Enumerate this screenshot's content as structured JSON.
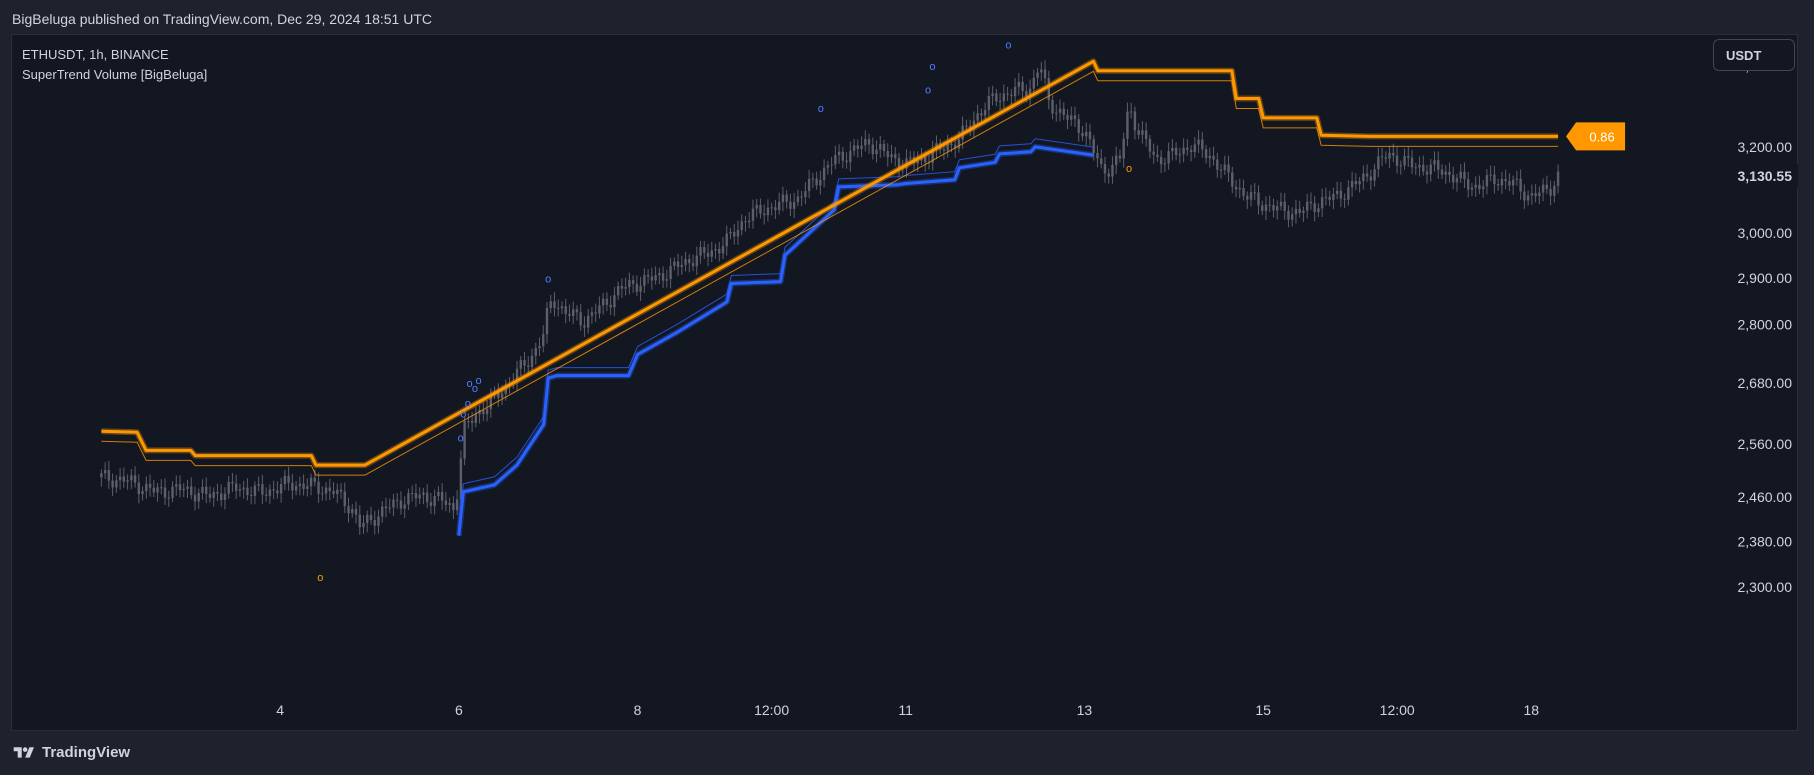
{
  "header": {
    "published_text": "BigBeluga published on TradingView.com, Dec 29, 2024 18:51 UTC"
  },
  "legend": {
    "symbol_line": "ETHUSDT, 1h, BINANCE",
    "indicator_line": "SuperTrend Volume [BigBeluga]"
  },
  "currency_button": "USDT",
  "footer": {
    "brand": "TradingView"
  },
  "colors": {
    "background": "#131722",
    "candles": "#5d606b",
    "bull_trend": "#2962ff",
    "bear_trend": "#ff9800",
    "text": "#d1d4dc"
  },
  "chart_data": {
    "type": "line",
    "symbol": "ETHUSDT",
    "interval": "1h",
    "exchange": "BINANCE",
    "indicator": "SuperTrend Volume [BigBeluga]",
    "x_ticks": [
      "4",
      "6",
      "8",
      "12:00",
      "11",
      "13",
      "15",
      "12:00",
      "18"
    ],
    "y_ticks": [
      "2,300.00",
      "2,380.00",
      "2,460.00",
      "2,560.00",
      "2,680.00",
      "2,800.00",
      "2,900.00",
      "3,000.00",
      "3,200.00",
      "3,400.00"
    ],
    "y_tick_values": [
      2300,
      2380,
      2460,
      2560,
      2680,
      2800,
      2900,
      3000,
      3200,
      3400
    ],
    "y_scale": "log",
    "ylim": [
      2210,
      3480
    ],
    "current_price": 3130.55,
    "current_price_label": "3,130.55",
    "indicator_value_label": "0.86",
    "price_path": [
      [
        2.0,
        2497
      ],
      [
        2.3,
        2490
      ],
      [
        2.6,
        2470
      ],
      [
        2.9,
        2475
      ],
      [
        3.2,
        2462
      ],
      [
        3.5,
        2478
      ],
      [
        3.8,
        2468
      ],
      [
        4.1,
        2485
      ],
      [
        4.4,
        2480
      ],
      [
        4.6,
        2470
      ],
      [
        4.8,
        2440
      ],
      [
        4.9,
        2405
      ],
      [
        5.0,
        2418
      ],
      [
        5.2,
        2440
      ],
      [
        5.4,
        2458
      ],
      [
        5.6,
        2462
      ],
      [
        5.8,
        2455
      ],
      [
        5.95,
        2438
      ],
      [
        6.0,
        2492
      ],
      [
        6.05,
        2585
      ],
      [
        6.2,
        2620
      ],
      [
        6.4,
        2648
      ],
      [
        6.6,
        2690
      ],
      [
        6.8,
        2730
      ],
      [
        6.95,
        2780
      ],
      [
        7.0,
        2830
      ],
      [
        7.05,
        2855
      ],
      [
        7.2,
        2825
      ],
      [
        7.4,
        2808
      ],
      [
        7.6,
        2838
      ],
      [
        7.8,
        2875
      ],
      [
        8.0,
        2890
      ],
      [
        8.2,
        2900
      ],
      [
        8.4,
        2920
      ],
      [
        8.6,
        2942
      ],
      [
        8.8,
        2955
      ],
      [
        9.0,
        2980
      ],
      [
        9.2,
        3032
      ],
      [
        9.4,
        3052
      ],
      [
        9.6,
        3065
      ],
      [
        9.8,
        3078
      ],
      [
        10.0,
        3125
      ],
      [
        10.2,
        3168
      ],
      [
        10.4,
        3190
      ],
      [
        10.6,
        3210
      ],
      [
        10.8,
        3178
      ],
      [
        11.0,
        3158
      ],
      [
        11.2,
        3172
      ],
      [
        11.4,
        3195
      ],
      [
        11.6,
        3218
      ],
      [
        11.8,
        3278
      ],
      [
        12.0,
        3320
      ],
      [
        12.2,
        3335
      ],
      [
        12.4,
        3345
      ],
      [
        12.5,
        3405
      ],
      [
        12.6,
        3310
      ],
      [
        12.8,
        3270
      ],
      [
        13.0,
        3240
      ],
      [
        13.1,
        3190
      ],
      [
        13.2,
        3140
      ],
      [
        13.3,
        3155
      ],
      [
        13.4,
        3170
      ],
      [
        13.5,
        3300
      ],
      [
        13.6,
        3240
      ],
      [
        13.8,
        3170
      ],
      [
        14.0,
        3180
      ],
      [
        14.2,
        3205
      ],
      [
        14.4,
        3180
      ],
      [
        14.6,
        3130
      ],
      [
        14.8,
        3085
      ],
      [
        15.0,
        3065
      ],
      [
        15.2,
        3052
      ],
      [
        15.4,
        3045
      ],
      [
        15.6,
        3068
      ],
      [
        15.8,
        3082
      ],
      [
        16.0,
        3105
      ],
      [
        16.2,
        3140
      ],
      [
        16.4,
        3183
      ],
      [
        16.6,
        3160
      ],
      [
        16.8,
        3150
      ],
      [
        17.0,
        3145
      ],
      [
        17.2,
        3120
      ],
      [
        17.4,
        3105
      ],
      [
        17.6,
        3125
      ],
      [
        17.8,
        3112
      ],
      [
        18.0,
        3082
      ],
      [
        18.2,
        3100
      ],
      [
        18.3,
        3130
      ]
    ],
    "series": [
      {
        "name": "SuperTrend Bullish",
        "color": "#2962ff",
        "x": [
          6.0,
          6.05,
          6.4,
          6.65,
          6.95,
          7.0,
          7.1,
          7.9,
          8.0,
          8.45,
          9.0,
          9.05,
          9.6,
          9.65,
          10.2,
          10.25,
          10.9,
          11.0,
          11.55,
          11.6,
          12.0,
          12.05,
          12.4,
          12.45,
          13.1
        ],
        "y": [
          2390,
          2470,
          2483,
          2520,
          2598,
          2690,
          2695,
          2695,
          2738,
          2785,
          2848,
          2888,
          2892,
          2950,
          3052,
          3105,
          3110,
          3113,
          3122,
          3150,
          3163,
          3183,
          3188,
          3200,
          3180
        ]
      },
      {
        "name": "SuperTrend Bearish",
        "color": "#ff9800",
        "x": [
          2.0,
          2.4,
          2.5,
          3.0,
          3.05,
          4.35,
          4.4,
          4.95,
          13.1,
          13.15,
          14.65,
          14.7,
          14.95,
          15.0,
          15.6,
          15.65,
          16.2,
          18.3
        ],
        "y": [
          2585,
          2583,
          2548,
          2548,
          2538,
          2538,
          2520,
          2520,
          3412,
          3388,
          3388,
          3318,
          3318,
          3270,
          3270,
          3228,
          3225,
          3225
        ]
      }
    ],
    "signals": [
      {
        "x": 4.45,
        "y": 2310,
        "type": "bearish",
        "label": "o"
      },
      {
        "x": 6.02,
        "y": 2565,
        "type": "bullish",
        "label": "o"
      },
      {
        "x": 6.05,
        "y": 2612,
        "type": "bullish",
        "label": "o"
      },
      {
        "x": 6.1,
        "y": 2632,
        "type": "bullish",
        "label": "o"
      },
      {
        "x": 6.12,
        "y": 2672,
        "type": "bullish",
        "label": "o"
      },
      {
        "x": 6.18,
        "y": 2662,
        "type": "bullish",
        "label": "o"
      },
      {
        "x": 6.22,
        "y": 2678,
        "type": "bullish",
        "label": "o"
      },
      {
        "x": 7.0,
        "y": 2890,
        "type": "bullish",
        "label": "o"
      },
      {
        "x": 10.05,
        "y": 3285,
        "type": "bullish",
        "label": "o"
      },
      {
        "x": 11.25,
        "y": 3330,
        "type": "bullish",
        "label": "o"
      },
      {
        "x": 11.3,
        "y": 3390,
        "type": "bullish",
        "label": "o"
      },
      {
        "x": 12.15,
        "y": 3445,
        "type": "bullish",
        "label": "o"
      },
      {
        "x": 13.5,
        "y": 3140,
        "type": "bearish",
        "label": "o"
      }
    ],
    "grid": false,
    "legend": "top-left"
  }
}
